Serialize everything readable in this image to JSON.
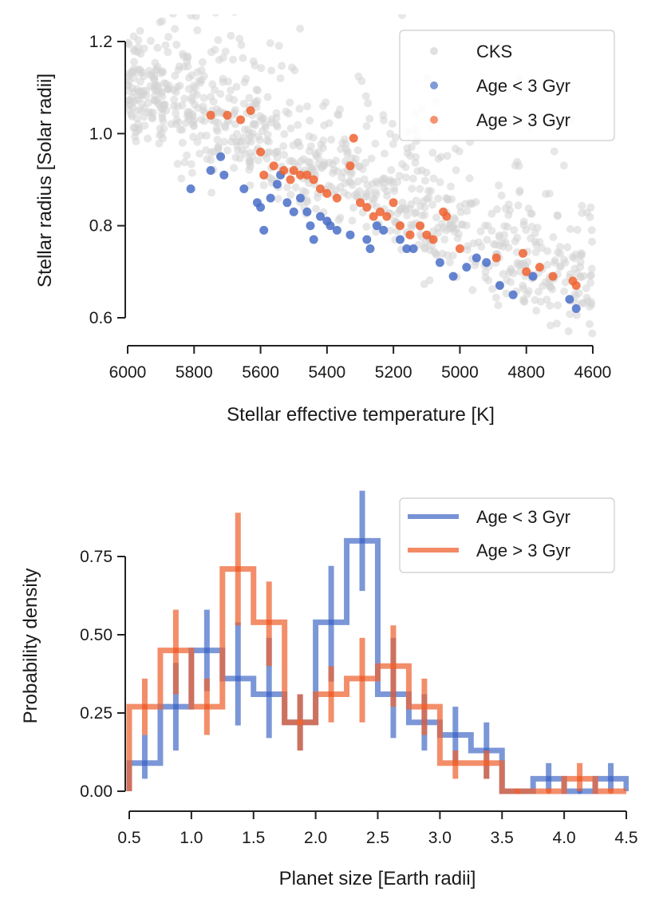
{
  "colors": {
    "cks": "#d3d3d3",
    "young": "#4a6fc8",
    "old": "#ef6331",
    "axis": "#222222"
  },
  "chart_data": [
    {
      "type": "scatter",
      "title": "",
      "xlabel": "Stellar effective temperature [K]",
      "ylabel": "Stellar radius [Solar radii]",
      "xlim": [
        6000,
        4600
      ],
      "ylim": [
        0.55,
        1.25
      ],
      "xticks": [
        6000,
        5800,
        5600,
        5400,
        5200,
        5000,
        4800,
        4600
      ],
      "xtick_labels": [
        "6000",
        "5800",
        "5600",
        "5400",
        "5200",
        "5000",
        "4800",
        "4600"
      ],
      "yticks": [
        0.6,
        0.8,
        1.0,
        1.2
      ],
      "ytick_labels": [
        "0.6",
        "0.8",
        "1.0",
        "1.2"
      ],
      "legend": [
        "CKS",
        "Age < 3 Gyr",
        "Age > 3 Gyr"
      ],
      "legend_position": "top-right",
      "series": [
        {
          "name": "Age < 3 Gyr",
          "points": [
            [
              5810,
              0.88
            ],
            [
              5750,
              0.92
            ],
            [
              5720,
              0.95
            ],
            [
              5710,
              0.91
            ],
            [
              5650,
              0.88
            ],
            [
              5610,
              0.85
            ],
            [
              5600,
              0.84
            ],
            [
              5590,
              0.79
            ],
            [
              5570,
              0.86
            ],
            [
              5550,
              0.89
            ],
            [
              5540,
              0.91
            ],
            [
              5520,
              0.85
            ],
            [
              5500,
              0.83
            ],
            [
              5480,
              0.86
            ],
            [
              5460,
              0.83
            ],
            [
              5450,
              0.8
            ],
            [
              5440,
              0.77
            ],
            [
              5420,
              0.82
            ],
            [
              5400,
              0.81
            ],
            [
              5390,
              0.8
            ],
            [
              5370,
              0.79
            ],
            [
              5330,
              0.78
            ],
            [
              5280,
              0.77
            ],
            [
              5270,
              0.75
            ],
            [
              5250,
              0.8
            ],
            [
              5230,
              0.79
            ],
            [
              5180,
              0.77
            ],
            [
              5160,
              0.75
            ],
            [
              5140,
              0.75
            ],
            [
              5060,
              0.72
            ],
            [
              5020,
              0.69
            ],
            [
              4980,
              0.71
            ],
            [
              4950,
              0.73
            ],
            [
              4920,
              0.72
            ],
            [
              4880,
              0.67
            ],
            [
              4840,
              0.65
            ],
            [
              4780,
              0.69
            ],
            [
              4670,
              0.64
            ],
            [
              4650,
              0.62
            ]
          ]
        },
        {
          "name": "Age > 3 Gyr",
          "points": [
            [
              5750,
              1.04
            ],
            [
              5700,
              1.04
            ],
            [
              5660,
              1.03
            ],
            [
              5630,
              1.05
            ],
            [
              5600,
              0.96
            ],
            [
              5590,
              0.91
            ],
            [
              5560,
              0.93
            ],
            [
              5530,
              0.92
            ],
            [
              5510,
              0.9
            ],
            [
              5500,
              0.92
            ],
            [
              5480,
              0.91
            ],
            [
              5460,
              0.91
            ],
            [
              5440,
              0.9
            ],
            [
              5420,
              0.88
            ],
            [
              5400,
              0.87
            ],
            [
              5370,
              0.86
            ],
            [
              5330,
              0.93
            ],
            [
              5320,
              0.99
            ],
            [
              5300,
              0.85
            ],
            [
              5280,
              0.84
            ],
            [
              5260,
              0.82
            ],
            [
              5240,
              0.83
            ],
            [
              5220,
              0.82
            ],
            [
              5200,
              0.85
            ],
            [
              5180,
              0.8
            ],
            [
              5150,
              0.78
            ],
            [
              5120,
              0.8
            ],
            [
              5100,
              0.78
            ],
            [
              5080,
              0.77
            ],
            [
              5050,
              0.83
            ],
            [
              5040,
              0.82
            ],
            [
              5000,
              0.75
            ],
            [
              4890,
              0.73
            ],
            [
              4810,
              0.74
            ],
            [
              4800,
              0.7
            ],
            [
              4760,
              0.71
            ],
            [
              4720,
              0.69
            ],
            [
              4660,
              0.68
            ],
            [
              4650,
              0.67
            ]
          ]
        }
      ]
    },
    {
      "type": "line",
      "title": "",
      "xlabel": "Planet size [Earth radii]",
      "ylabel": "Probability density",
      "xlim": [
        0.5,
        4.5
      ],
      "ylim": [
        -0.07,
        0.93
      ],
      "xticks": [
        0.5,
        1.0,
        1.5,
        2.0,
        2.5,
        3.0,
        3.5,
        4.0,
        4.5
      ],
      "xtick_labels": [
        "0.5",
        "1.0",
        "1.5",
        "2.0",
        "2.5",
        "3.0",
        "3.5",
        "4.0",
        "4.5"
      ],
      "yticks": [
        0.0,
        0.25,
        0.5,
        0.75
      ],
      "ytick_labels": [
        "0.00",
        "0.25",
        "0.50",
        "0.75"
      ],
      "legend": [
        "Age < 3 Gyr",
        "Age > 3 Gyr"
      ],
      "legend_position": "top-right",
      "bin_edges": [
        0.5,
        0.75,
        1.0,
        1.25,
        1.5,
        1.75,
        2.0,
        2.25,
        2.5,
        2.75,
        3.0,
        3.25,
        3.5,
        3.75,
        4.0,
        4.25,
        4.5
      ],
      "bin_centers": [
        0.625,
        0.875,
        1.125,
        1.375,
        1.625,
        1.875,
        2.125,
        2.375,
        2.625,
        2.875,
        3.125,
        3.375,
        3.625,
        3.875,
        4.125,
        4.375
      ],
      "series": [
        {
          "name": "Age < 3 Gyr",
          "values": [
            0.09,
            0.27,
            0.45,
            0.36,
            0.31,
            0.22,
            0.54,
            0.8,
            0.31,
            0.22,
            0.18,
            0.13,
            0.0,
            0.04,
            0.0,
            0.04
          ],
          "err_low": [
            0.04,
            0.13,
            0.32,
            0.21,
            0.17,
            0.13,
            0.35,
            0.64,
            0.17,
            0.13,
            0.09,
            0.04,
            0.0,
            0.0,
            0.0,
            0.0
          ],
          "err_high": [
            0.18,
            0.41,
            0.58,
            0.54,
            0.49,
            0.31,
            0.72,
            0.96,
            0.49,
            0.31,
            0.27,
            0.22,
            0.0,
            0.09,
            0.0,
            0.09
          ]
        },
        {
          "name": "Age > 3 Gyr",
          "values": [
            0.27,
            0.45,
            0.27,
            0.71,
            0.54,
            0.22,
            0.31,
            0.36,
            0.4,
            0.27,
            0.09,
            0.09,
            0.0,
            0.0,
            0.04,
            0.0
          ],
          "err_low": [
            0.18,
            0.31,
            0.18,
            0.53,
            0.4,
            0.13,
            0.22,
            0.22,
            0.27,
            0.18,
            0.04,
            0.04,
            0.0,
            0.0,
            0.0,
            0.0
          ],
          "err_high": [
            0.36,
            0.58,
            0.36,
            0.89,
            0.67,
            0.31,
            0.4,
            0.49,
            0.53,
            0.36,
            0.13,
            0.13,
            0.0,
            0.0,
            0.09,
            0.0
          ]
        }
      ]
    }
  ]
}
